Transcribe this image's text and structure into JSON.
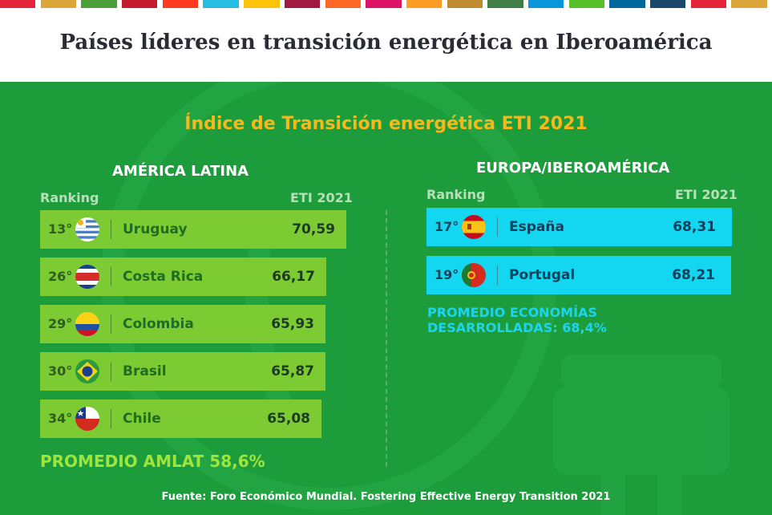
{
  "header": {
    "title": "Países líderes en transición energética en Iberoamérica",
    "strip_colors": [
      "#e5243b",
      "#dda63a",
      "#4c9f38",
      "#c5192d",
      "#ff3a21",
      "#26bde2",
      "#fcc30b",
      "#a21942",
      "#fd6925",
      "#dd1367",
      "#fd9d24",
      "#bf8b2e",
      "#3f7e44",
      "#0a97d9",
      "#56c02b",
      "#00689d",
      "#19486a",
      "#e5243b",
      "#dda63a"
    ]
  },
  "subtitle": "Índice de Transición energética ETI 2021",
  "colors": {
    "background": "#1d9c3c",
    "subtitle": "#f7b81c",
    "latam_bar": "#7dcb33",
    "europe_bar": "#13d6f0",
    "latam_average": "#9ee63d",
    "europe_average": "#1cd4ef"
  },
  "latam": {
    "section_title": "AMÉRICA LATINA",
    "ranking_label": "Ranking",
    "eti_label": "ETI 2021",
    "average": "PROMEDIO AMLAT 58,6%"
  },
  "europe": {
    "section_title": "EUROPA/IBEROAMÉRICA",
    "ranking_label": "Ranking",
    "eti_label": "ETI 2021",
    "average": "PROMEDIO ECONOMÍAS DESARROLLADAS: 68,4%"
  },
  "source": "Fuente: Foro Económico Mundial.  Fostering Effective Energy Transition 2021",
  "chart_data": [
    {
      "type": "bar",
      "title": "AMÉRICA LATINA",
      "xlabel": "Ranking",
      "ylabel": "ETI 2021",
      "rows": [
        {
          "rank": "13°",
          "country": "Uruguay",
          "value_label": "70,59",
          "value": 70.59,
          "flag": "uruguay-flag-icon"
        },
        {
          "rank": "26°",
          "country": "Costa Rica",
          "value_label": "66,17",
          "value": 66.17,
          "flag": "costa-rica-flag-icon"
        },
        {
          "rank": "29°",
          "country": "Colombia",
          "value_label": "65,93",
          "value": 65.93,
          "flag": "colombia-flag-icon"
        },
        {
          "rank": "30°",
          "country": "Brasil",
          "value_label": "65,87",
          "value": 65.87,
          "flag": "brazil-flag-icon"
        },
        {
          "rank": "34°",
          "country": "Chile",
          "value_label": "65,08",
          "value": 65.08,
          "flag": "chile-flag-icon"
        }
      ]
    },
    {
      "type": "bar",
      "title": "EUROPA/IBEROAMÉRICA",
      "xlabel": "Ranking",
      "ylabel": "ETI 2021",
      "rows": [
        {
          "rank": "17°",
          "country": "España",
          "value_label": "68,31",
          "value": 68.31,
          "flag": "spain-flag-icon"
        },
        {
          "rank": "19°",
          "country": "Portugal",
          "value_label": "68,21",
          "value": 68.21,
          "flag": "portugal-flag-icon"
        }
      ]
    }
  ]
}
